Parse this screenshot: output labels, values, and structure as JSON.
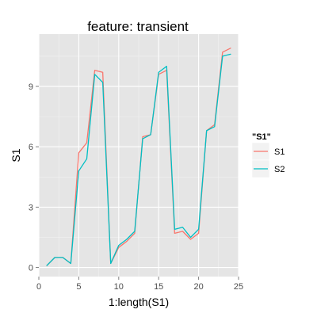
{
  "chart_data": {
    "type": "line",
    "title": "feature: transient",
    "xlabel": "1:length(S1)",
    "ylabel": "S1",
    "xlim": [
      0,
      25
    ],
    "ylim": [
      -0.45,
      11.6
    ],
    "x_ticks": [
      0,
      5,
      10,
      15,
      20,
      25
    ],
    "y_ticks": [
      0,
      3,
      6,
      9
    ],
    "grid": true,
    "legend": {
      "title": "\"S1\"",
      "position": "right"
    },
    "x": [
      1,
      2,
      3,
      4,
      5,
      6,
      7,
      8,
      9,
      10,
      11,
      12,
      13,
      14,
      15,
      16,
      17,
      18,
      19,
      20,
      21,
      22,
      23,
      24
    ],
    "series": [
      {
        "name": "S1",
        "color": "#F8766D",
        "values": [
          0.1,
          0.5,
          0.5,
          0.2,
          5.7,
          6.2,
          9.8,
          9.7,
          0.2,
          1.0,
          1.3,
          1.7,
          6.5,
          6.6,
          9.6,
          9.8,
          1.7,
          1.8,
          1.4,
          1.7,
          6.8,
          7.1,
          10.7,
          10.9
        ]
      },
      {
        "name": "S2",
        "color": "#00BFC4",
        "values": [
          0.1,
          0.5,
          0.5,
          0.2,
          4.8,
          5.4,
          9.6,
          9.2,
          0.2,
          1.1,
          1.4,
          1.8,
          6.4,
          6.6,
          9.7,
          10.0,
          1.9,
          2.0,
          1.5,
          1.9,
          6.8,
          7.0,
          10.5,
          10.6
        ]
      }
    ]
  }
}
